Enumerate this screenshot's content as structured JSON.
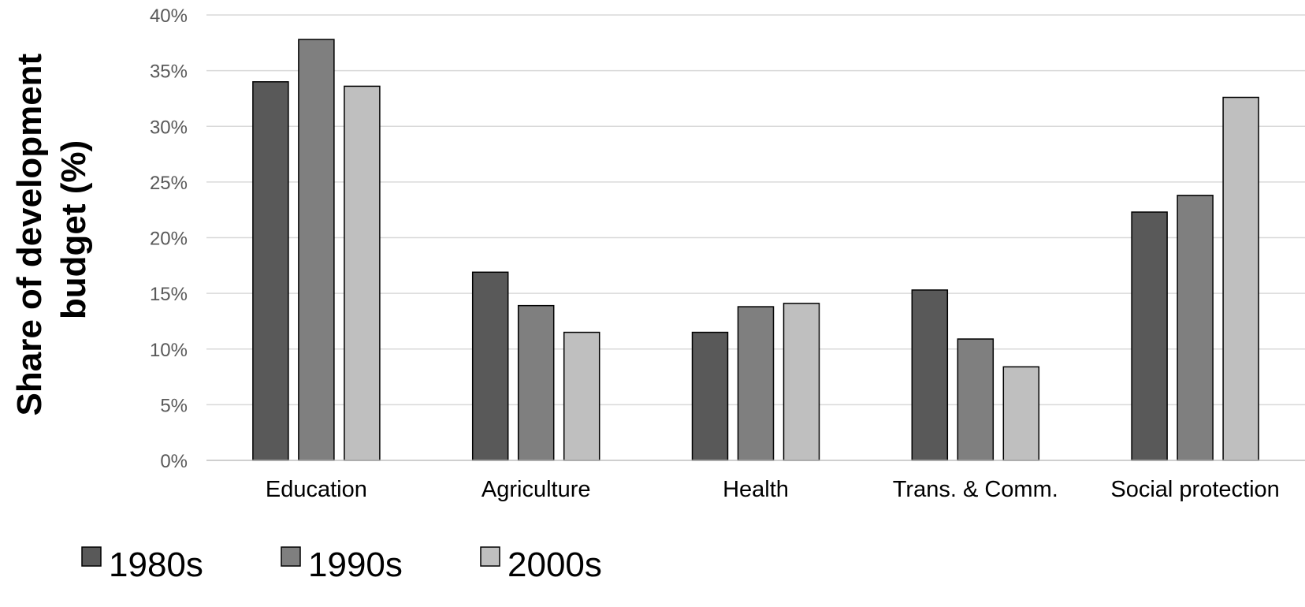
{
  "chart_data": {
    "type": "bar",
    "categories": [
      "Education",
      "Agriculture",
      "Health",
      "Trans. & Comm.",
      "Social protection"
    ],
    "series": [
      {
        "name": "1980s",
        "color": "#595959",
        "values": [
          34.0,
          16.9,
          11.5,
          15.3,
          22.3
        ]
      },
      {
        "name": "1990s",
        "color": "#7f7f7f",
        "values": [
          37.8,
          13.9,
          13.8,
          10.9,
          23.8
        ]
      },
      {
        "name": "2000s",
        "color": "#bfbfbf",
        "values": [
          33.6,
          11.5,
          14.1,
          8.4,
          32.6
        ]
      }
    ],
    "ylabel_lines": [
      "Share of development",
      "budget (%)"
    ],
    "xlabel": "",
    "ylim": [
      0,
      40
    ],
    "yticks": [
      0,
      5,
      10,
      15,
      20,
      25,
      30,
      35,
      40
    ],
    "ytick_labels": [
      "0%",
      "5%",
      "10%",
      "15%",
      "20%",
      "25%",
      "30%",
      "35%",
      "40%"
    ],
    "grid": true,
    "legend_position": "bottom-left"
  }
}
